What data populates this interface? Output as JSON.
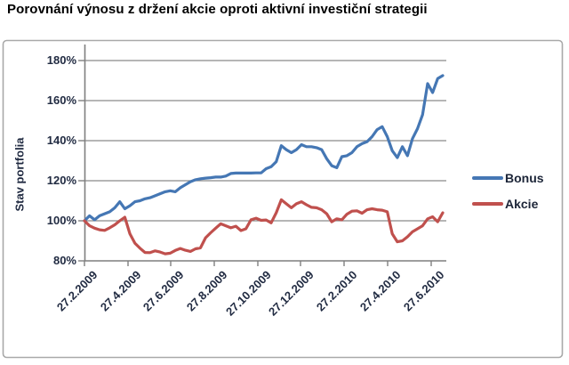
{
  "title": "Porovnání výnosu z držení akcie oproti aktivní investiční strategii",
  "chart_data": {
    "type": "line",
    "title": "Porovnání výnosu z držení akcie oproti aktivní investiční strategii",
    "xlabel": "",
    "ylabel": "Stav portfolia",
    "ylim": [
      80,
      180
    ],
    "y_unit": "%",
    "grid": "horizontal",
    "legend_position": "right",
    "ytick_labels": [
      "180%",
      "160%",
      "140%",
      "120%",
      "100%",
      "80%"
    ],
    "ytick_values": [
      180,
      160,
      140,
      120,
      100,
      80
    ],
    "x_tick_labels": [
      "27.2.2009",
      "27.4.2009",
      "27.6.2009",
      "27.8.2009",
      "27.10.2009",
      "27.12.2009",
      "27.2.2010",
      "27.4.2010",
      "27.6.2010"
    ],
    "x_note": "weekly observations from 27.2.2009, values in percent of initial portfolio",
    "colors": {
      "bonus_line": "#4577b4",
      "akcie_line": "#c0504d",
      "gridline": "#8a8a8a",
      "axis": "#7f7f7f",
      "axis_text": "#212b42",
      "chart_border": "#a9a9a9"
    },
    "series": [
      {
        "name": "Bonus",
        "color": "#4577b4",
        "values": [
          100,
          102.5,
          100.5,
          102.5,
          103.5,
          104.5,
          106.5,
          109.5,
          106,
          107.5,
          109.5,
          110,
          111,
          111.5,
          112.5,
          113.5,
          114.5,
          115,
          114.5,
          116.5,
          118,
          119.5,
          120.5,
          121,
          121.3,
          121.5,
          121.8,
          121.8,
          122.3,
          123.6,
          123.8,
          123.8,
          123.8,
          123.8,
          123.9,
          123.9,
          126,
          127,
          129.5,
          137.5,
          135.5,
          134,
          135.5,
          138,
          137,
          137,
          136.5,
          135.5,
          131,
          127.5,
          126.5,
          132,
          132.5,
          134,
          137,
          138.5,
          139.5,
          142,
          145.5,
          147,
          142,
          135,
          131.5,
          137,
          132.5,
          141,
          146,
          153,
          168.5,
          164,
          171,
          172.5
        ]
      },
      {
        "name": "Akcie",
        "color": "#c0504d",
        "values": [
          100,
          97.5,
          96.3,
          95.5,
          95.2,
          96.5,
          98,
          100,
          101.8,
          93.5,
          88.8,
          86.3,
          84.2,
          84.1,
          85,
          84.4,
          83.5,
          83.8,
          85.2,
          86.2,
          85.3,
          84.7,
          86,
          86.5,
          91.5,
          94,
          96.3,
          98.5,
          97.5,
          96.5,
          97.3,
          95.1,
          96,
          100.5,
          101.3,
          100.2,
          100.4,
          99,
          104,
          110.5,
          108.5,
          106.5,
          108.5,
          109.5,
          108,
          106.7,
          106.5,
          105.5,
          103.5,
          99.5,
          101,
          100.5,
          103.3,
          104.8,
          105,
          103.8,
          105.5,
          106,
          105.5,
          105.3,
          104.5,
          93.5,
          89.5,
          90,
          92,
          94.5,
          96,
          97.5,
          101,
          102,
          99.5,
          104
        ]
      }
    ]
  }
}
